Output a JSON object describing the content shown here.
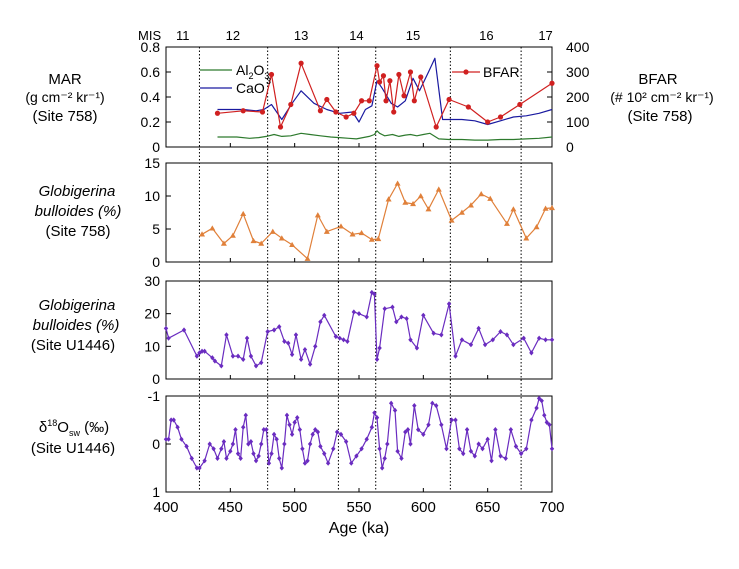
{
  "chart_data": [
    {
      "type": "line",
      "panel": "mar_bfar",
      "ylabel_lines": [
        "MAR",
        "(g cm⁻² kr⁻¹)",
        "(Site 758)"
      ],
      "ylabel_right_lines": [
        "BFAR",
        "(# 10² cm⁻² kr⁻¹)",
        "(Site 758)"
      ],
      "ylim": [
        0,
        0.8
      ],
      "ylim_right": [
        0,
        400
      ],
      "yticks": [
        "0",
        "0.2",
        "0.4",
        "0.6",
        "0.8"
      ],
      "yticks_right": [
        "0",
        "100",
        "200",
        "300",
        "400"
      ],
      "legend": {
        "al2o3": "Al",
        "al2o3_sub1": "2",
        "al2o3_mid": "O",
        "al2o3_sub2": "3",
        "cao_main": "CaO",
        "cao_sub": "3",
        "bfar": "BFAR"
      },
      "series": [
        {
          "name": "Al2O3",
          "color": "#2d7a2d",
          "axis": "left",
          "x": [
            440,
            445,
            455,
            465,
            472,
            478,
            484,
            490,
            497,
            505,
            512,
            520,
            528,
            535,
            542,
            548,
            553,
            558,
            562,
            564,
            566,
            570,
            576,
            581,
            586,
            590,
            595,
            600,
            605,
            612,
            620,
            630,
            640,
            650,
            660,
            670,
            680,
            690,
            700
          ],
          "values": [
            0.08,
            0.08,
            0.08,
            0.07,
            0.075,
            0.085,
            0.1,
            0.085,
            0.09,
            0.11,
            0.1,
            0.09,
            0.08,
            0.075,
            0.07,
            0.065,
            0.075,
            0.085,
            0.1,
            0.13,
            0.11,
            0.09,
            0.1,
            0.085,
            0.095,
            0.1,
            0.09,
            0.1,
            0.11,
            0.065,
            0.06,
            0.06,
            0.055,
            0.055,
            0.06,
            0.06,
            0.065,
            0.07,
            0.08
          ]
        },
        {
          "name": "CaO",
          "color": "#1a1aa0",
          "axis": "left",
          "x": [
            440,
            450,
            460,
            470,
            476,
            482,
            490,
            498,
            505,
            515,
            525,
            535,
            545,
            550,
            555,
            560,
            564,
            568,
            575,
            580,
            586,
            592,
            597,
            604,
            609,
            615,
            630,
            640,
            650,
            660,
            670,
            680,
            690,
            700
          ],
          "values": [
            0.3,
            0.3,
            0.3,
            0.29,
            0.3,
            0.34,
            0.22,
            0.35,
            0.45,
            0.35,
            0.3,
            0.27,
            0.28,
            0.2,
            0.3,
            0.33,
            0.53,
            0.47,
            0.35,
            0.32,
            0.37,
            0.55,
            0.45,
            0.6,
            0.71,
            0.22,
            0.22,
            0.21,
            0.18,
            0.21,
            0.24,
            0.25,
            0.27,
            0.3
          ]
        },
        {
          "name": "BFAR",
          "color": "#d02020",
          "axis": "right",
          "x": [
            440,
            460,
            475,
            482,
            489,
            497,
            505,
            520,
            525,
            532,
            540,
            546,
            552,
            558,
            564,
            566,
            569,
            571,
            574,
            577,
            581,
            585,
            590,
            593,
            598,
            610,
            620,
            635,
            650,
            660,
            675,
            700
          ],
          "values": [
            135,
            145,
            140,
            290,
            80,
            170,
            335,
            145,
            190,
            140,
            120,
            135,
            185,
            185,
            325,
            260,
            285,
            185,
            265,
            140,
            290,
            205,
            300,
            185,
            280,
            80,
            190,
            160,
            100,
            120,
            170,
            255
          ]
        }
      ]
    },
    {
      "type": "line",
      "panel": "gb_758",
      "ylabel_lines": [
        "Globigerina",
        "bulloides (%)",
        "(Site 758)"
      ],
      "ylim": [
        0,
        15
      ],
      "yticks": [
        "0",
        "5",
        "10",
        "15"
      ],
      "series": [
        {
          "name": "G. bulloides (Site 758)",
          "color": "#e0803a",
          "x": [
            428,
            436,
            445,
            452,
            460,
            468,
            474,
            483,
            490,
            498,
            510,
            518,
            525,
            536,
            545,
            552,
            560,
            565,
            573,
            580,
            586,
            592,
            598,
            604,
            612,
            622,
            630,
            637,
            645,
            652,
            665,
            670,
            680,
            688,
            695,
            700
          ],
          "values": [
            4.2,
            5.1,
            2.8,
            4.0,
            7.3,
            3.2,
            2.8,
            4.6,
            3.6,
            2.6,
            0.5,
            7.1,
            4.6,
            5.4,
            4.2,
            4.4,
            3.4,
            3.5,
            9.5,
            11.9,
            9.0,
            8.8,
            10.0,
            8.0,
            11.0,
            6.3,
            7.5,
            8.6,
            10.3,
            9.6,
            5.8,
            8.0,
            3.6,
            5.3,
            8.1,
            8.2
          ]
        }
      ]
    },
    {
      "type": "line",
      "panel": "gb_u1446",
      "ylabel_lines": [
        "Globigerina",
        "bulloides (%)",
        "(Site U1446)"
      ],
      "ylim": [
        0,
        30
      ],
      "yticks": [
        "0",
        "10",
        "20",
        "30"
      ],
      "series": [
        {
          "name": "G. bulloides (Site U1446)",
          "color": "#6a2cc0",
          "x": [
            400,
            402,
            414,
            424,
            426,
            428,
            430,
            436,
            438,
            443,
            447,
            452,
            456,
            460,
            463,
            466,
            470,
            474,
            479,
            484,
            488,
            492,
            495,
            498,
            501,
            505,
            508,
            512,
            516,
            520,
            523,
            532,
            535,
            538,
            541,
            546,
            550,
            556,
            560,
            562,
            564,
            566,
            570,
            576,
            579,
            583,
            587,
            590,
            595,
            600,
            608,
            614,
            620,
            625,
            630,
            637,
            643,
            648,
            654,
            660,
            665,
            670,
            678,
            684,
            690,
            695,
            700
          ],
          "values": [
            15.5,
            12.5,
            15,
            7,
            8,
            8.5,
            8.5,
            6.5,
            5.5,
            4,
            13.5,
            7,
            7,
            6,
            12.5,
            7,
            4,
            5,
            14.5,
            15,
            16,
            11.5,
            11,
            7.5,
            13.5,
            6,
            9,
            4.5,
            10,
            17.5,
            19.5,
            13,
            12.5,
            12,
            11.5,
            20.5,
            20,
            19,
            26.5,
            26,
            6,
            9.5,
            21.5,
            22,
            17.5,
            19,
            18.5,
            12,
            9.5,
            19.5,
            14,
            13.5,
            23,
            7,
            12,
            10.5,
            15.5,
            10.5,
            12,
            14.5,
            13.5,
            10.5,
            12.5,
            8,
            12.5,
            12,
            12
          ]
        }
      ]
    },
    {
      "type": "line",
      "panel": "d18o",
      "ylabel_main": "δ",
      "ylabel_sup": "18",
      "ylabel_mid": "O",
      "ylabel_sub": "sw",
      "ylabel_unit": " (‰)",
      "ylabel_site": "(Site U1446)",
      "ylim": [
        1,
        -1
      ],
      "yticks": [
        "1",
        "0",
        "-1"
      ],
      "xlabel": "Age (ka)",
      "xticks": [
        "400",
        "450",
        "500",
        "550",
        "600",
        "650",
        "700"
      ],
      "series": [
        {
          "name": "d18Osw (Site U1446)",
          "color": "#6a2cc0",
          "x": [
            400,
            402,
            404,
            406,
            409,
            412,
            416,
            420,
            424,
            426,
            430,
            434,
            437,
            440,
            443,
            445,
            447,
            450,
            452,
            454,
            456,
            458,
            460,
            462,
            464,
            466,
            468,
            470,
            472,
            474,
            476,
            478,
            480,
            482,
            484,
            486,
            488,
            490,
            492,
            494,
            496,
            498,
            500,
            502,
            504,
            506,
            508,
            510,
            512,
            514,
            516,
            518,
            520,
            523,
            526,
            530,
            533,
            536,
            540,
            544,
            548,
            552,
            556,
            560,
            562,
            564,
            566,
            568,
            570,
            572,
            575,
            578,
            580,
            583,
            586,
            588,
            590,
            593,
            596,
            600,
            604,
            607,
            610,
            614,
            618,
            622,
            625,
            628,
            631,
            634,
            637,
            640,
            643,
            646,
            650,
            653,
            656,
            660,
            664,
            668,
            672,
            676,
            680,
            684,
            688,
            690,
            692,
            694,
            696,
            698,
            700
          ],
          "values": [
            -0.1,
            -0.1,
            -0.5,
            -0.5,
            -0.35,
            -0.1,
            0.05,
            0.3,
            0.5,
            0.5,
            0.35,
            0.0,
            0.1,
            0.3,
            0.1,
            -0.05,
            0.3,
            0.15,
            0.0,
            -0.3,
            0.2,
            0.3,
            -0.35,
            -0.6,
            0.0,
            -0.05,
            0.2,
            0.35,
            0.25,
            0.0,
            -0.3,
            -0.3,
            0.4,
            0.2,
            -0.2,
            -0.1,
            0.3,
            0.5,
            0.0,
            -0.6,
            -0.4,
            -0.2,
            -0.45,
            -0.55,
            -0.3,
            0.1,
            0.4,
            0.35,
            0.0,
            -0.2,
            -0.3,
            -0.25,
            0.05,
            0.2,
            0.4,
            0.1,
            -0.25,
            -0.2,
            -0.05,
            0.4,
            0.25,
            0.1,
            -0.1,
            -0.35,
            -0.65,
            -0.55,
            0.1,
            0.5,
            0.3,
            0.0,
            -0.85,
            -0.7,
            0.15,
            0.3,
            -0.25,
            -0.3,
            0.0,
            -0.8,
            -0.3,
            -0.2,
            -0.4,
            -0.85,
            -0.8,
            -0.4,
            0.1,
            -0.5,
            -0.5,
            0.1,
            0.2,
            -0.3,
            0.15,
            0.25,
            0.0,
            0.1,
            -0.1,
            0.35,
            -0.3,
            0.25,
            0.3,
            -0.3,
            0.05,
            0.2,
            0.1,
            -0.5,
            -0.75,
            -0.95,
            -0.9,
            -0.6,
            -0.45,
            -0.4,
            0.1
          ]
        }
      ]
    }
  ],
  "mis": {
    "label": "MIS",
    "stages": [
      {
        "label": "11",
        "age": 413
      },
      {
        "label": "12",
        "age": 452
      },
      {
        "label": "13",
        "age": 505
      },
      {
        "label": "14",
        "age": 548
      },
      {
        "label": "15",
        "age": 592
      },
      {
        "label": "16",
        "age": 649
      },
      {
        "label": "17",
        "age": 695
      }
    ],
    "boundaries": [
      426,
      479,
      534,
      563,
      621,
      676
    ]
  }
}
